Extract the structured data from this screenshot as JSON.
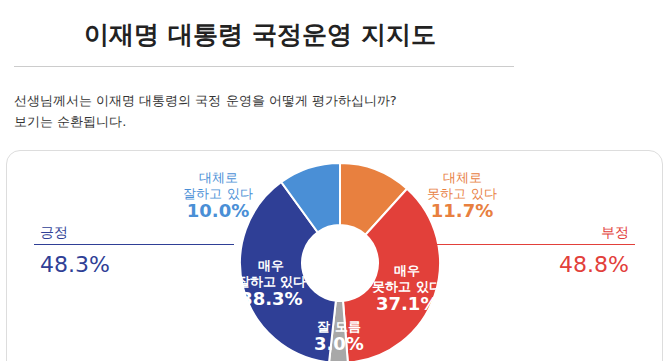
{
  "chart_data": {
    "type": "pie",
    "title": "이재명 대통령 국정운영 지지도",
    "subtitle": [
      "선생님께서는 이재명 대통령의 국정 운영을 어떻게 평가하십니까?",
      "보기는 순환됩니다."
    ],
    "categories": [
      "대체로 못하고 있다",
      "매우 못하고 있다",
      "잘 모름",
      "매우 잘하고 있다",
      "대체로 잘하고 있다"
    ],
    "values": [
      11.7,
      37.1,
      3.0,
      38.3,
      10.0
    ],
    "value_labels": [
      "11.7%",
      "37.1%",
      "3.0%",
      "38.3%",
      "10.0%"
    ],
    "colors": [
      "#e8803f",
      "#e2403a",
      "#a8a8a8",
      "#2f3f96",
      "#4a8fd6"
    ],
    "data_labels": true,
    "summary": [
      {
        "label": "긍정",
        "value": 48.3,
        "value_label": "48.3%",
        "color": "#2f3f96"
      },
      {
        "label": "부정",
        "value": 48.8,
        "value_label": "48.8%",
        "color": "#e2403a"
      }
    ]
  }
}
